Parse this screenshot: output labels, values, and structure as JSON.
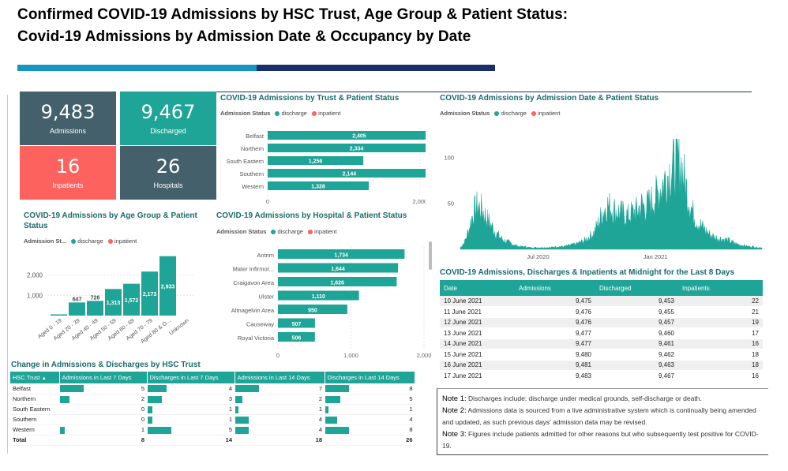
{
  "header": {
    "title_line1": "Confirmed COVID-19 Admissions by HSC Trust, Age Group & Patient Status:",
    "title_line2": "Covid-19 Admissions by Admission Date & Occupancy by Date"
  },
  "colors": {
    "discharge": "#1ea597",
    "inpatient": "#fd625e",
    "dark": "#44606b",
    "accent_blue": "#1696bf",
    "navy": "#1c2f6b"
  },
  "kpis": [
    {
      "value": "9,483",
      "label": "Admissions",
      "color": "#44606b"
    },
    {
      "value": "9,467",
      "label": "Discharged",
      "color": "#1ea597"
    },
    {
      "value": "16",
      "label": "Inpatients",
      "color": "#fd625e"
    },
    {
      "value": "26",
      "label": "Hospitals",
      "color": "#44606b"
    }
  ],
  "legend": {
    "title": "Admission Status",
    "title_short": "Admission St...",
    "discharge": "discharge",
    "inpatient": "inpatient"
  },
  "chart_data": [
    {
      "type": "bar",
      "orientation": "horizontal",
      "title": "COVID-19 Admissions by Trust & Patient Status",
      "categories": [
        "Belfast",
        "Northern",
        "South Eastern",
        "Southern",
        "Western"
      ],
      "series": [
        {
          "name": "discharge",
          "values": [
            2405,
            2334,
            1256,
            2144,
            1328
          ]
        }
      ],
      "data_labels": [
        "2,405",
        "2,334",
        "1,256",
        "2,144",
        "1,328"
      ],
      "xlim": [
        0,
        2800
      ],
      "ticks": [
        0,
        2000
      ],
      "tick_labels": [
        "0",
        "2,000"
      ]
    },
    {
      "type": "bar",
      "title": "COVID-19 Admissions by Age Group & Patient Status",
      "categories": [
        "Aged 0 - 19",
        "Aged 20 - 39",
        "Aged 40 - 49",
        "Aged 50 - 59",
        "Aged 60 - 69",
        "Aged 70 - 79",
        "Aged 80 & O...",
        "Unknown"
      ],
      "series": [
        {
          "name": "discharge",
          "values": [
            60,
            647,
            726,
            1313,
            1572,
            2173,
            2933,
            0
          ]
        }
      ],
      "data_labels": [
        "",
        "647",
        "726",
        "1,313",
        "1,572",
        "2,173",
        "2,933",
        ""
      ],
      "ylim": [
        0,
        3000
      ],
      "ticks": [
        1000,
        2000
      ],
      "tick_labels": [
        "1,000",
        "2,000"
      ]
    },
    {
      "type": "bar",
      "orientation": "horizontal",
      "title": "COVID-19 Admissions by Hospital & Patient Status",
      "categories": [
        "Antrim",
        "Mater Infirmor...",
        "Craigavon Area",
        "Ulster",
        "Altnagelvin Area",
        "Causeway",
        "Royal Victoria"
      ],
      "series": [
        {
          "name": "discharge",
          "values": [
            1734,
            1644,
            1626,
            1110,
            950,
            507,
            506
          ]
        }
      ],
      "data_labels": [
        "1,734",
        "1,644",
        "1,626",
        "1,110",
        "950",
        "507",
        "506"
      ],
      "xlim": [
        0,
        2000
      ],
      "ticks": [
        0,
        1000,
        2000
      ],
      "tick_labels": [
        "0",
        "1,000",
        "2,000"
      ]
    },
    {
      "type": "area",
      "title": "COVID-19 Admissions by Admission Date & Patient Status",
      "x_start": "2020-03-01",
      "x_end": "2021-06-17",
      "ylim": [
        0,
        120
      ],
      "ticks": [
        50,
        100
      ],
      "tick_labels": [
        "50",
        "100"
      ],
      "x_tick_labels": [
        "Jul 2020",
        "Jan 2021"
      ],
      "weekly_values": [
        2,
        8,
        22,
        40,
        47,
        43,
        35,
        27,
        20,
        14,
        10,
        8,
        6,
        4,
        3,
        3,
        2,
        2,
        2,
        2,
        2,
        2,
        3,
        3,
        3,
        4,
        5,
        6,
        8,
        10,
        14,
        18,
        28,
        40,
        48,
        45,
        42,
        40,
        38,
        36,
        40,
        42,
        48,
        46,
        50,
        55,
        62,
        72,
        80,
        88,
        94,
        96,
        75,
        55,
        40,
        30,
        25,
        20,
        16,
        13,
        12,
        11,
        10,
        8,
        6,
        5,
        4,
        3,
        3,
        2,
        2
      ]
    }
  ],
  "table8": {
    "title": "COVID-19 Admissions, Discharges & Inpatients at Midnight for the Last 8 Days",
    "headers": [
      "Date",
      "Admissions",
      "Discharged",
      "Inpatients"
    ],
    "rows": [
      [
        "10 June 2021",
        "9,475",
        "9,453",
        "22"
      ],
      [
        "11 June 2021",
        "9,476",
        "9,455",
        "21"
      ],
      [
        "12 June 2021",
        "9,476",
        "9,457",
        "19"
      ],
      [
        "13 June 2021",
        "9,477",
        "9,460",
        "17"
      ],
      [
        "14 June 2021",
        "9,477",
        "9,461",
        "16"
      ],
      [
        "15 June 2021",
        "9,480",
        "9,462",
        "18"
      ],
      [
        "16 June 2021",
        "9,481",
        "9,463",
        "18"
      ],
      [
        "17 June 2021",
        "9,483",
        "9,467",
        "16"
      ]
    ]
  },
  "change_table": {
    "title": "Change in Admissions & Discharges by HSC Trust",
    "headers": [
      "HSC Trust",
      "Admissions in Last 7 Days",
      "Discharges in Last 7 Days",
      "Admissions in Last 14 Days",
      "Discharges in Last 14 Days"
    ],
    "rows": [
      {
        "trust": "Belfast",
        "values": [
          5,
          4,
          7,
          8
        ]
      },
      {
        "trust": "Northern",
        "values": [
          2,
          3,
          2,
          5
        ]
      },
      {
        "trust": "South Eastern",
        "values": [
          0,
          1,
          1,
          1
        ]
      },
      {
        "trust": "Southern",
        "values": [
          0,
          1,
          4,
          4
        ]
      },
      {
        "trust": "Western",
        "values": [
          1,
          5,
          4,
          8
        ]
      }
    ],
    "total_label": "Total",
    "totals": [
      "8",
      "14",
      "18",
      "26"
    ]
  },
  "notes": [
    {
      "label": "Note 1:",
      "text": " Discharges include: discharge under medical grounds, self-discharge or death."
    },
    {
      "label": "Note 2:",
      "text": " Admissions data is sourced from a live administrative system which is continually being amended and updated, as such previous days' admission data may be revised."
    },
    {
      "label": "Note 3:",
      "text": " Figures include patients admitted for other reasons but who subsequently test positive for COVID-19."
    }
  ]
}
